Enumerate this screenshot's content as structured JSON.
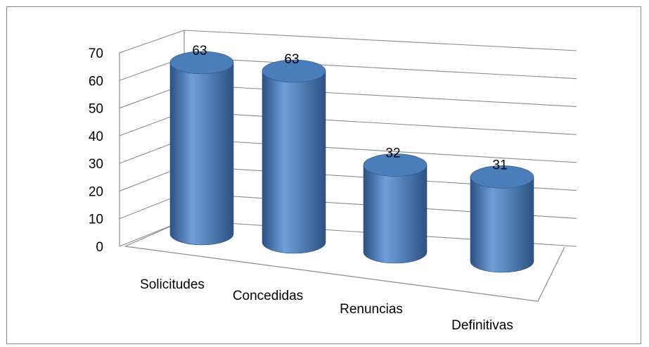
{
  "chart_data": {
    "type": "bar",
    "style": "3d-cylinder",
    "categories": [
      "Solicitudes",
      "Concedidas",
      "Renuncias",
      "Definitivas"
    ],
    "values": [
      63,
      63,
      32,
      31
    ],
    "data_labels": [
      "63",
      "63",
      "32",
      "31"
    ],
    "yticks": [
      "0",
      "10",
      "20",
      "30",
      "40",
      "50",
      "60",
      "70"
    ],
    "ylim": [
      0,
      70
    ],
    "grid": true,
    "legend": "none",
    "colors": {
      "bar_body": "#4a7ebb",
      "bar_light": "#6f9fd8",
      "bar_dark": "#2c5282",
      "gridline": "#8c8c8c",
      "frame": "#8c8c8c"
    }
  }
}
